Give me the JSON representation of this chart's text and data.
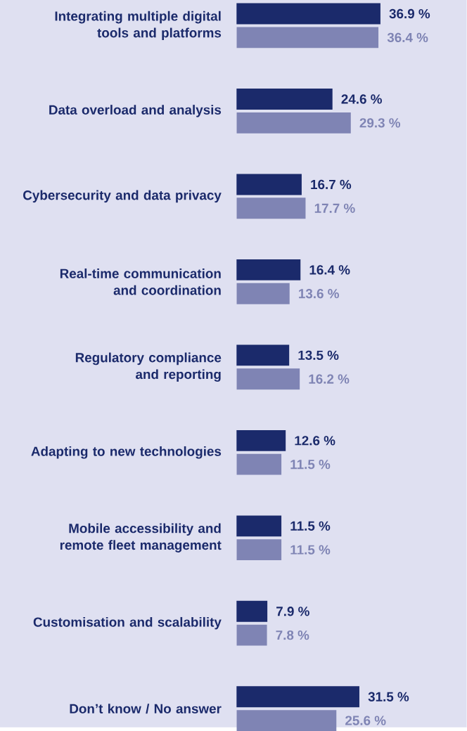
{
  "chart_data": {
    "type": "bar",
    "orientation": "horizontal",
    "categories": [
      "Integrating multiple digital tools and platforms",
      "Data overload and analysis",
      "Cybersecurity and data privacy",
      "Real-time communication and coordination",
      "Regulatory compliance and reporting",
      "Adapting to new technologies",
      "Mobile accessibility and remote fleet management",
      "Customisation and scalability",
      "Don’t know / No answer"
    ],
    "series": [
      {
        "color": "#1b2a6b",
        "values": [
          36.9,
          24.6,
          16.7,
          16.4,
          13.5,
          12.6,
          11.5,
          7.9,
          31.5
        ],
        "value_labels": [
          "36.9 %",
          "24.6 %",
          "16.7 %",
          "16.4 %",
          "13.5 %",
          "12.6 %",
          "11.5 %",
          "7.9 %",
          "31.5 %"
        ]
      },
      {
        "color": "#7f84b4",
        "values": [
          36.4,
          29.3,
          17.7,
          13.6,
          16.2,
          11.5,
          11.5,
          7.8,
          25.6
        ],
        "value_labels": [
          "36.4 %",
          "29.3 %",
          "17.7 %",
          "13.6 %",
          "16.2 %",
          "11.5 %",
          "11.5 %",
          "7.8 %",
          "25.6 %"
        ]
      }
    ]
  }
}
